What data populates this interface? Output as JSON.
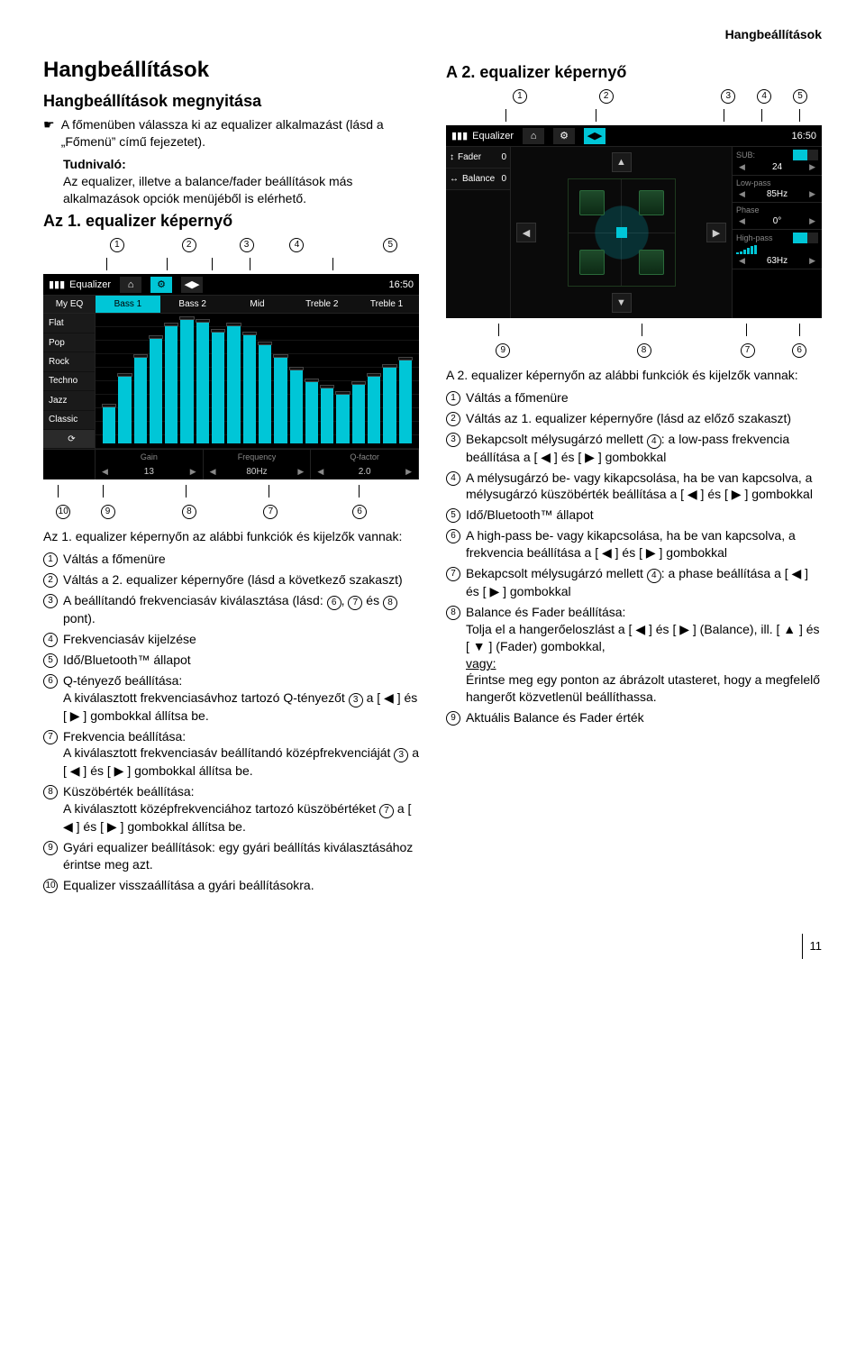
{
  "page": {
    "header_right": "Hangbeállítások",
    "number": "11"
  },
  "left": {
    "h1": "Hangbeállítások",
    "h2_open": "Hangbeállítások megnyitása",
    "open_text": "A főmenüben válassza ki az equalizer alkalmazást (lásd a „Főmenü” című fejezetet).",
    "note_label": "Tudnivaló:",
    "note_text": "Az equalizer, illetve a balance/fader beállítások más alkalmazások opciók menüjéből is elérhető.",
    "h2_screen1": "Az 1. equalizer képernyő",
    "callouts_top": [
      "1",
      "2",
      "3",
      "4",
      "5"
    ],
    "callouts_bottom": [
      "10",
      "9",
      "8",
      "7",
      "6"
    ],
    "screen1": {
      "title": "Equalizer",
      "time": "16:50",
      "myeq": "My EQ",
      "tabs": [
        "Bass 1",
        "Bass 2",
        "Mid",
        "Treble 2",
        "Treble 1"
      ],
      "presets": [
        "Flat",
        "Pop",
        "Rock",
        "Techno",
        "Jazz",
        "Classic"
      ],
      "reset": "⟳",
      "bars": [
        30,
        55,
        70,
        85,
        95,
        100,
        98,
        90,
        95,
        88,
        80,
        70,
        60,
        50,
        45,
        40,
        48,
        55,
        62,
        68
      ],
      "bottom_labels": [
        "Gain",
        "Frequency",
        "Q-factor"
      ],
      "bottom_values": [
        "13",
        "80Hz",
        "2.0"
      ]
    },
    "desc_intro": "Az 1. equalizer képernyőn az alábbi funkciók és kijelzők vannak:",
    "items": [
      {
        "n": "1",
        "t": "Váltás a főmenüre"
      },
      {
        "n": "2",
        "t": "Váltás a 2. equalizer képernyőre (lásd a következő szakaszt)"
      },
      {
        "n": "3",
        "t": "A beállítandó frekvenciasáv kiválasztása (lásd: ⑥, ⑦ és ⑧ pont)."
      },
      {
        "n": "4",
        "t": "Frekvenciasáv kijelzése"
      },
      {
        "n": "5",
        "t": "Idő/Bluetooth™ állapot"
      },
      {
        "n": "6",
        "t": "Q-tényező beállítása:\nA kiválasztott frekvenciasávhoz tartozó Q-tényezőt ③ a [ ◀ ] és [ ▶ ] gombokkal állítsa be."
      },
      {
        "n": "7",
        "t": "Frekvencia beállítása:\nA kiválasztott frekvenciasáv beállítandó középfrekvenciáját ③ a [ ◀ ] és [ ▶ ] gombokkal állítsa be."
      },
      {
        "n": "8",
        "t": "Küszöbérték beállítása:\nA kiválasztott középfrekvenciához tartozó küszöbértéket ⑦ a [ ◀ ] és [ ▶ ] gombokkal állítsa be."
      },
      {
        "n": "9",
        "t": "Gyári equalizer beállítások: egy gyári beállítás kiválasztásához érintse meg azt."
      },
      {
        "n": "10",
        "t": "Equalizer visszaállítása a gyári beállításokra."
      }
    ]
  },
  "right": {
    "h2_screen2": "A 2. equalizer képernyő",
    "callouts_top": [
      "1",
      "2",
      "3",
      "4",
      "5"
    ],
    "callouts_bottom": [
      "9",
      "8",
      "7",
      "6"
    ],
    "screen2": {
      "title": "Equalizer",
      "time": "16:50",
      "left_rows": [
        {
          "icon": "↕",
          "label": "Fader",
          "val": "0"
        },
        {
          "icon": "↔",
          "label": "Balance",
          "val": "0"
        }
      ],
      "right_panels": {
        "sub": {
          "label": "SUB:",
          "value": "24"
        },
        "lowpass": {
          "label": "Low-pass",
          "value": "85Hz"
        },
        "phase": {
          "label": "Phase",
          "value": "0°"
        },
        "highpass": {
          "label": "High-pass",
          "value": "63Hz"
        }
      }
    },
    "desc_intro": "A 2. equalizer képernyőn az alábbi funkciók és kijelzők vannak:",
    "items": [
      {
        "n": "1",
        "t": "Váltás a főmenüre"
      },
      {
        "n": "2",
        "t": "Váltás az 1. equalizer képernyőre (lásd az előző szakaszt)"
      },
      {
        "n": "3",
        "t": "Bekapcsolt mélysugárzó mellett ④: a low-pass frekvencia beállítása a [ ◀ ] és [ ▶ ] gombokkal"
      },
      {
        "n": "4",
        "t": "A mélysugárzó be- vagy kikapcsolása, ha be van kapcsolva, a mélysugárzó küszöbérték beállítása a [ ◀ ] és [ ▶ ] gombokkal"
      },
      {
        "n": "5",
        "t": "Idő/Bluetooth™ állapot"
      },
      {
        "n": "6",
        "t": "A high-pass be- vagy kikapcsolása, ha be van kapcsolva, a frekvencia beállítása a [ ◀ ] és [ ▶ ] gombokkal"
      },
      {
        "n": "7",
        "t": "Bekapcsolt mélysugárzó mellett ④: a phase beállítása a [ ◀ ] és [ ▶ ] gombokkal"
      },
      {
        "n": "8",
        "t": "Balance és Fader beállítása:\nTolja el a hangerőeloszlást a [ ◀ ] és [ ▶ ] (Balance), ill. [ ▲ ] és [ ▼ ] (Fader) gombokkal,\n__vagy:__\nÉrintse meg egy ponton az ábrázolt utasteret, hogy a megfelelő hangerőt közvetlenül beállíthassa."
      },
      {
        "n": "9",
        "t": "Aktuális Balance és Fader érték"
      }
    ]
  }
}
